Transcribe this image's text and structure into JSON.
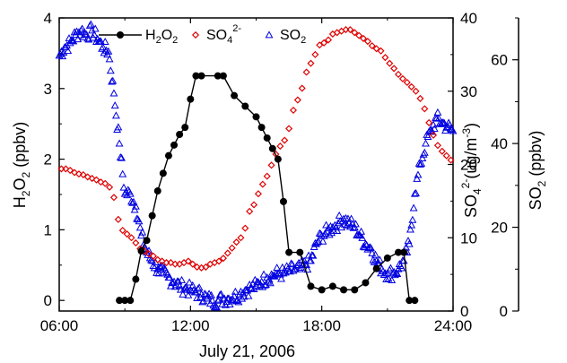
{
  "chart_data": {
    "type": "scatter",
    "x_axis": {
      "label": "July 21, 2006",
      "range_hours": [
        6,
        24
      ],
      "ticks": [
        6,
        12,
        18,
        24
      ],
      "tick_labels": [
        "06:00",
        "12:00",
        "18:00",
        "24:00"
      ]
    },
    "y_axes": {
      "h2o2": {
        "label_main": "H",
        "label_sub1": "2",
        "label_mid": "O",
        "label_sub2": "2",
        "label_tail": " (ppbv)",
        "range": [
          -0.15,
          4
        ],
        "ticks": [
          0,
          1,
          2,
          3,
          4
        ]
      },
      "so4": {
        "label_main": "SO",
        "label_sub": "4",
        "label_sup": "2-",
        "label_tail": "(ug/m",
        "label_sup2": "-3",
        "label_end": ")",
        "range": [
          0,
          40
        ],
        "ticks": [
          0,
          10,
          20,
          30,
          40
        ]
      },
      "so2": {
        "label_main": "SO",
        "label_sub": "2",
        "label_tail": " (ppbv)",
        "range": [
          0,
          70
        ],
        "ticks": [
          0,
          20,
          40,
          60
        ]
      }
    },
    "legend": {
      "placement": "top",
      "entries": [
        {
          "series": "h2o2",
          "main": "H",
          "sub1": "2",
          "mid": "O",
          "sub2": "2"
        },
        {
          "series": "so4",
          "main": "SO",
          "sub": "4",
          "sup": "2-"
        },
        {
          "series": "so2",
          "main": "SO",
          "sub": "2"
        }
      ]
    },
    "colors": {
      "h2o2": "#000000",
      "so4": "#e00000",
      "so2": "#0000e0"
    },
    "series": {
      "h2o2": {
        "x": [
          8.75,
          9.0,
          9.25,
          9.5,
          9.75,
          10.0,
          10.25,
          10.5,
          10.75,
          11.0,
          11.25,
          11.5,
          11.75,
          12.0,
          12.25,
          12.5,
          13.25,
          13.5,
          14.0,
          14.5,
          15.0,
          15.25,
          15.5,
          15.75,
          16.0,
          16.25,
          16.5,
          17.0,
          17.5,
          18.0,
          18.5,
          19.0,
          19.5,
          20.0,
          20.5,
          21.0,
          21.5,
          21.75,
          22.0,
          22.25
        ],
        "y": [
          0,
          0,
          0,
          0.3,
          0.7,
          0.85,
          1.2,
          1.55,
          1.8,
          2.05,
          2.2,
          2.35,
          2.45,
          2.85,
          3.18,
          3.18,
          3.18,
          3.18,
          2.9,
          2.75,
          2.6,
          2.45,
          2.3,
          2.15,
          2.0,
          1.4,
          0.68,
          0.68,
          0.2,
          0.15,
          0.2,
          0.15,
          0.15,
          0.25,
          0.45,
          0.6,
          0.68,
          0.68,
          0.0,
          0.0
        ]
      },
      "so4": {
        "x": [
          6.1,
          6.3,
          6.5,
          6.7,
          6.9,
          7.1,
          7.3,
          7.5,
          7.7,
          7.9,
          8.1,
          8.3,
          8.5,
          8.7,
          8.9,
          9.1,
          9.3,
          9.5,
          9.7,
          9.9,
          10.1,
          10.3,
          10.5,
          10.7,
          10.9,
          11.1,
          11.3,
          11.5,
          11.7,
          11.9,
          12.1,
          12.3,
          12.5,
          12.7,
          12.9,
          13.1,
          13.3,
          13.5,
          13.7,
          13.9,
          14.1,
          14.3,
          14.5,
          14.7,
          14.9,
          15.1,
          15.3,
          15.5,
          15.7,
          15.9,
          16.1,
          16.3,
          16.5,
          16.7,
          16.9,
          17.1,
          17.3,
          17.5,
          17.7,
          17.9,
          18.1,
          18.3,
          18.5,
          18.7,
          18.9,
          19.1,
          19.3,
          19.5,
          19.7,
          19.9,
          20.1,
          20.3,
          20.5,
          20.7,
          20.9,
          21.1,
          21.3,
          21.5,
          21.7,
          21.9,
          22.1,
          22.3,
          22.5,
          22.7,
          22.9,
          23.1,
          23.3,
          23.5,
          23.7,
          23.9
        ],
        "y": [
          19.4,
          19.4,
          19.2,
          18.9,
          18.7,
          18.6,
          18.3,
          18.1,
          17.9,
          17.6,
          17.4,
          16.9,
          15.5,
          12.5,
          11,
          10.5,
          10,
          9.3,
          8.5,
          8.2,
          7.8,
          7.5,
          7.0,
          6.8,
          6.6,
          6.6,
          6.4,
          6.4,
          6.6,
          6.8,
          6.4,
          6.0,
          5.9,
          6.0,
          6.4,
          6.6,
          6.8,
          7.2,
          7.9,
          8.6,
          9.4,
          10.0,
          11.3,
          13.6,
          14.5,
          16.0,
          17.3,
          18.4,
          19.9,
          21.4,
          22.5,
          23.3,
          24.9,
          27.4,
          28.8,
          30.4,
          32.6,
          33.8,
          35.0,
          36.3,
          36.6,
          37.0,
          37.8,
          38.0,
          38.2,
          38.4,
          38.4,
          38.0,
          37.6,
          37.2,
          36.8,
          36.2,
          35.8,
          35.5,
          34.6,
          33.8,
          33.1,
          32.3,
          31.7,
          31.2,
          30.6,
          30.0,
          29.0,
          27.6,
          25.7,
          24.0,
          22.6,
          21.8,
          21.2,
          20.6
        ]
      },
      "so2": {
        "x": [
          6.0,
          6.25,
          6.5,
          6.75,
          7.0,
          7.25,
          7.5,
          7.75,
          8.0,
          8.25,
          8.5,
          8.75,
          9.0,
          9.25,
          9.5,
          9.75,
          10.0,
          10.25,
          10.5,
          10.75,
          11.0,
          11.25,
          11.5,
          11.75,
          12.0,
          12.25,
          12.5,
          12.75,
          13.0,
          13.25,
          13.5,
          13.75,
          14.0,
          14.25,
          14.5,
          14.75,
          15.0,
          15.25,
          15.5,
          15.75,
          16.0,
          16.25,
          16.5,
          16.75,
          17.0,
          17.25,
          17.5,
          17.75,
          18.0,
          18.25,
          18.5,
          18.75,
          19.0,
          19.25,
          19.5,
          19.75,
          20.0,
          20.25,
          20.5,
          20.75,
          21.0,
          21.25,
          21.5,
          21.75,
          22.0,
          22.25,
          22.5,
          22.75,
          23.0,
          23.25,
          23.5,
          23.75,
          24.0
        ],
        "y": [
          61,
          63,
          64,
          66,
          67,
          66,
          67,
          65,
          63,
          62,
          52,
          40,
          28,
          28,
          25,
          18,
          14,
          12,
          10,
          9,
          8,
          7,
          6,
          5.5,
          5,
          4.5,
          4,
          3,
          2.5,
          2.5,
          3,
          3,
          3.5,
          4,
          5,
          5.5,
          6,
          7,
          8,
          8.5,
          9,
          9,
          9.5,
          10,
          10,
          11,
          12,
          16,
          18,
          19,
          20,
          21,
          22,
          21,
          20,
          18,
          16,
          15,
          12,
          10,
          9,
          9,
          10,
          12,
          16,
          28,
          35,
          40,
          43,
          46,
          45,
          44,
          43
        ]
      }
    }
  }
}
